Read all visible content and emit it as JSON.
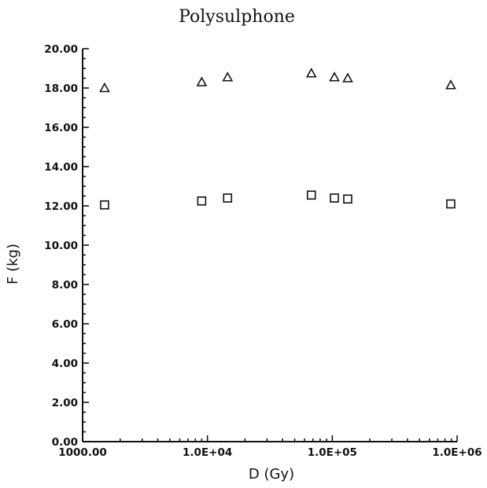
{
  "chart_data": {
    "type": "scatter",
    "title": "Polysulphone",
    "xlabel": "D (Gy)",
    "ylabel": "F (kg)",
    "x_scale": "log",
    "xlim": [
      1000,
      1000000
    ],
    "ylim": [
      0,
      20
    ],
    "x_tick_labels": [
      {
        "value": 1000,
        "label": "1000.00"
      },
      {
        "value": 10000,
        "label": "1.0E+04"
      },
      {
        "value": 100000,
        "label": "1.0E+05"
      },
      {
        "value": 1000000,
        "label": "1.0E+06"
      }
    ],
    "y_tick_labels": [
      {
        "value": 0,
        "label": "0.00"
      },
      {
        "value": 2,
        "label": "2.00"
      },
      {
        "value": 4,
        "label": "4.00"
      },
      {
        "value": 6,
        "label": "6.00"
      },
      {
        "value": 8,
        "label": "8.00"
      },
      {
        "value": 10,
        "label": "10.00"
      },
      {
        "value": 12,
        "label": "12.00"
      },
      {
        "value": 14,
        "label": "14.00"
      },
      {
        "value": 16,
        "label": "16.00"
      },
      {
        "value": 18,
        "label": "18.00"
      },
      {
        "value": 20,
        "label": "20.00"
      }
    ],
    "grid": false,
    "series": [
      {
        "marker": "triangle",
        "points": [
          {
            "x": 1500,
            "y": 18.0
          },
          {
            "x": 9000,
            "y": 18.3
          },
          {
            "x": 14500,
            "y": 18.55
          },
          {
            "x": 68000,
            "y": 18.75
          },
          {
            "x": 104000,
            "y": 18.55
          },
          {
            "x": 133000,
            "y": 18.5
          },
          {
            "x": 890000,
            "y": 18.15
          }
        ]
      },
      {
        "marker": "square",
        "points": [
          {
            "x": 1500,
            "y": 12.05
          },
          {
            "x": 9000,
            "y": 12.25
          },
          {
            "x": 14500,
            "y": 12.4
          },
          {
            "x": 68000,
            "y": 12.55
          },
          {
            "x": 104000,
            "y": 12.4
          },
          {
            "x": 133000,
            "y": 12.35
          },
          {
            "x": 890000,
            "y": 12.1
          }
        ]
      }
    ]
  }
}
